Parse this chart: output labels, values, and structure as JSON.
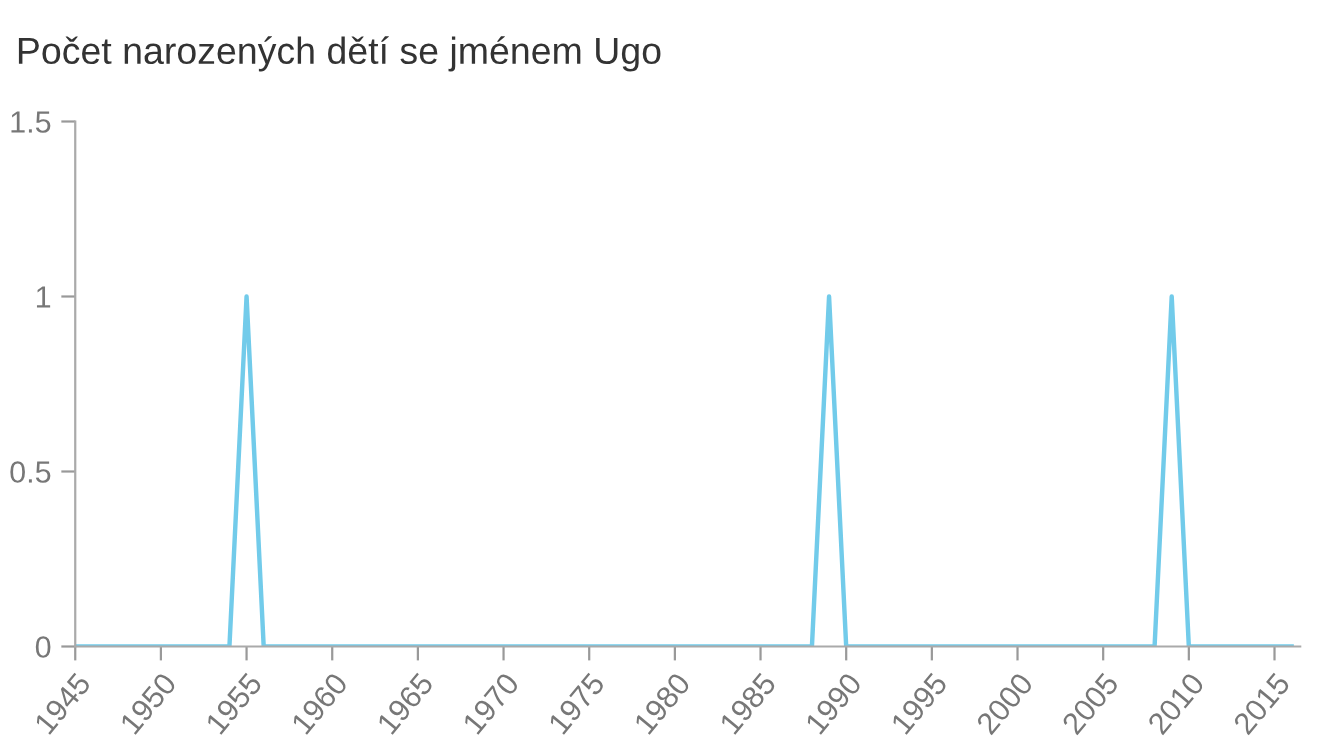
{
  "chart_data": {
    "type": "line",
    "title": "Počet narozených dětí se jménem Ugo",
    "x": [
      1945,
      1954,
      1955,
      1956,
      1988,
      1989,
      1990,
      2008,
      2009,
      2010,
      2016
    ],
    "series": [
      {
        "color": "#72cbea",
        "values": [
          0,
          0,
          1,
          0,
          0,
          1,
          0,
          0,
          1,
          0,
          0
        ]
      }
    ],
    "xlim": [
      1945,
      2016.5
    ],
    "xticks": [
      1945,
      1950,
      1955,
      1960,
      1965,
      1970,
      1975,
      1980,
      1985,
      1990,
      1995,
      2000,
      2005,
      2010,
      2015
    ],
    "ylim": [
      0,
      1.5
    ],
    "yticks": [
      0,
      0.5,
      1,
      1.5
    ],
    "grid": false,
    "legend": false,
    "marker": "none",
    "line_style": "solid"
  }
}
